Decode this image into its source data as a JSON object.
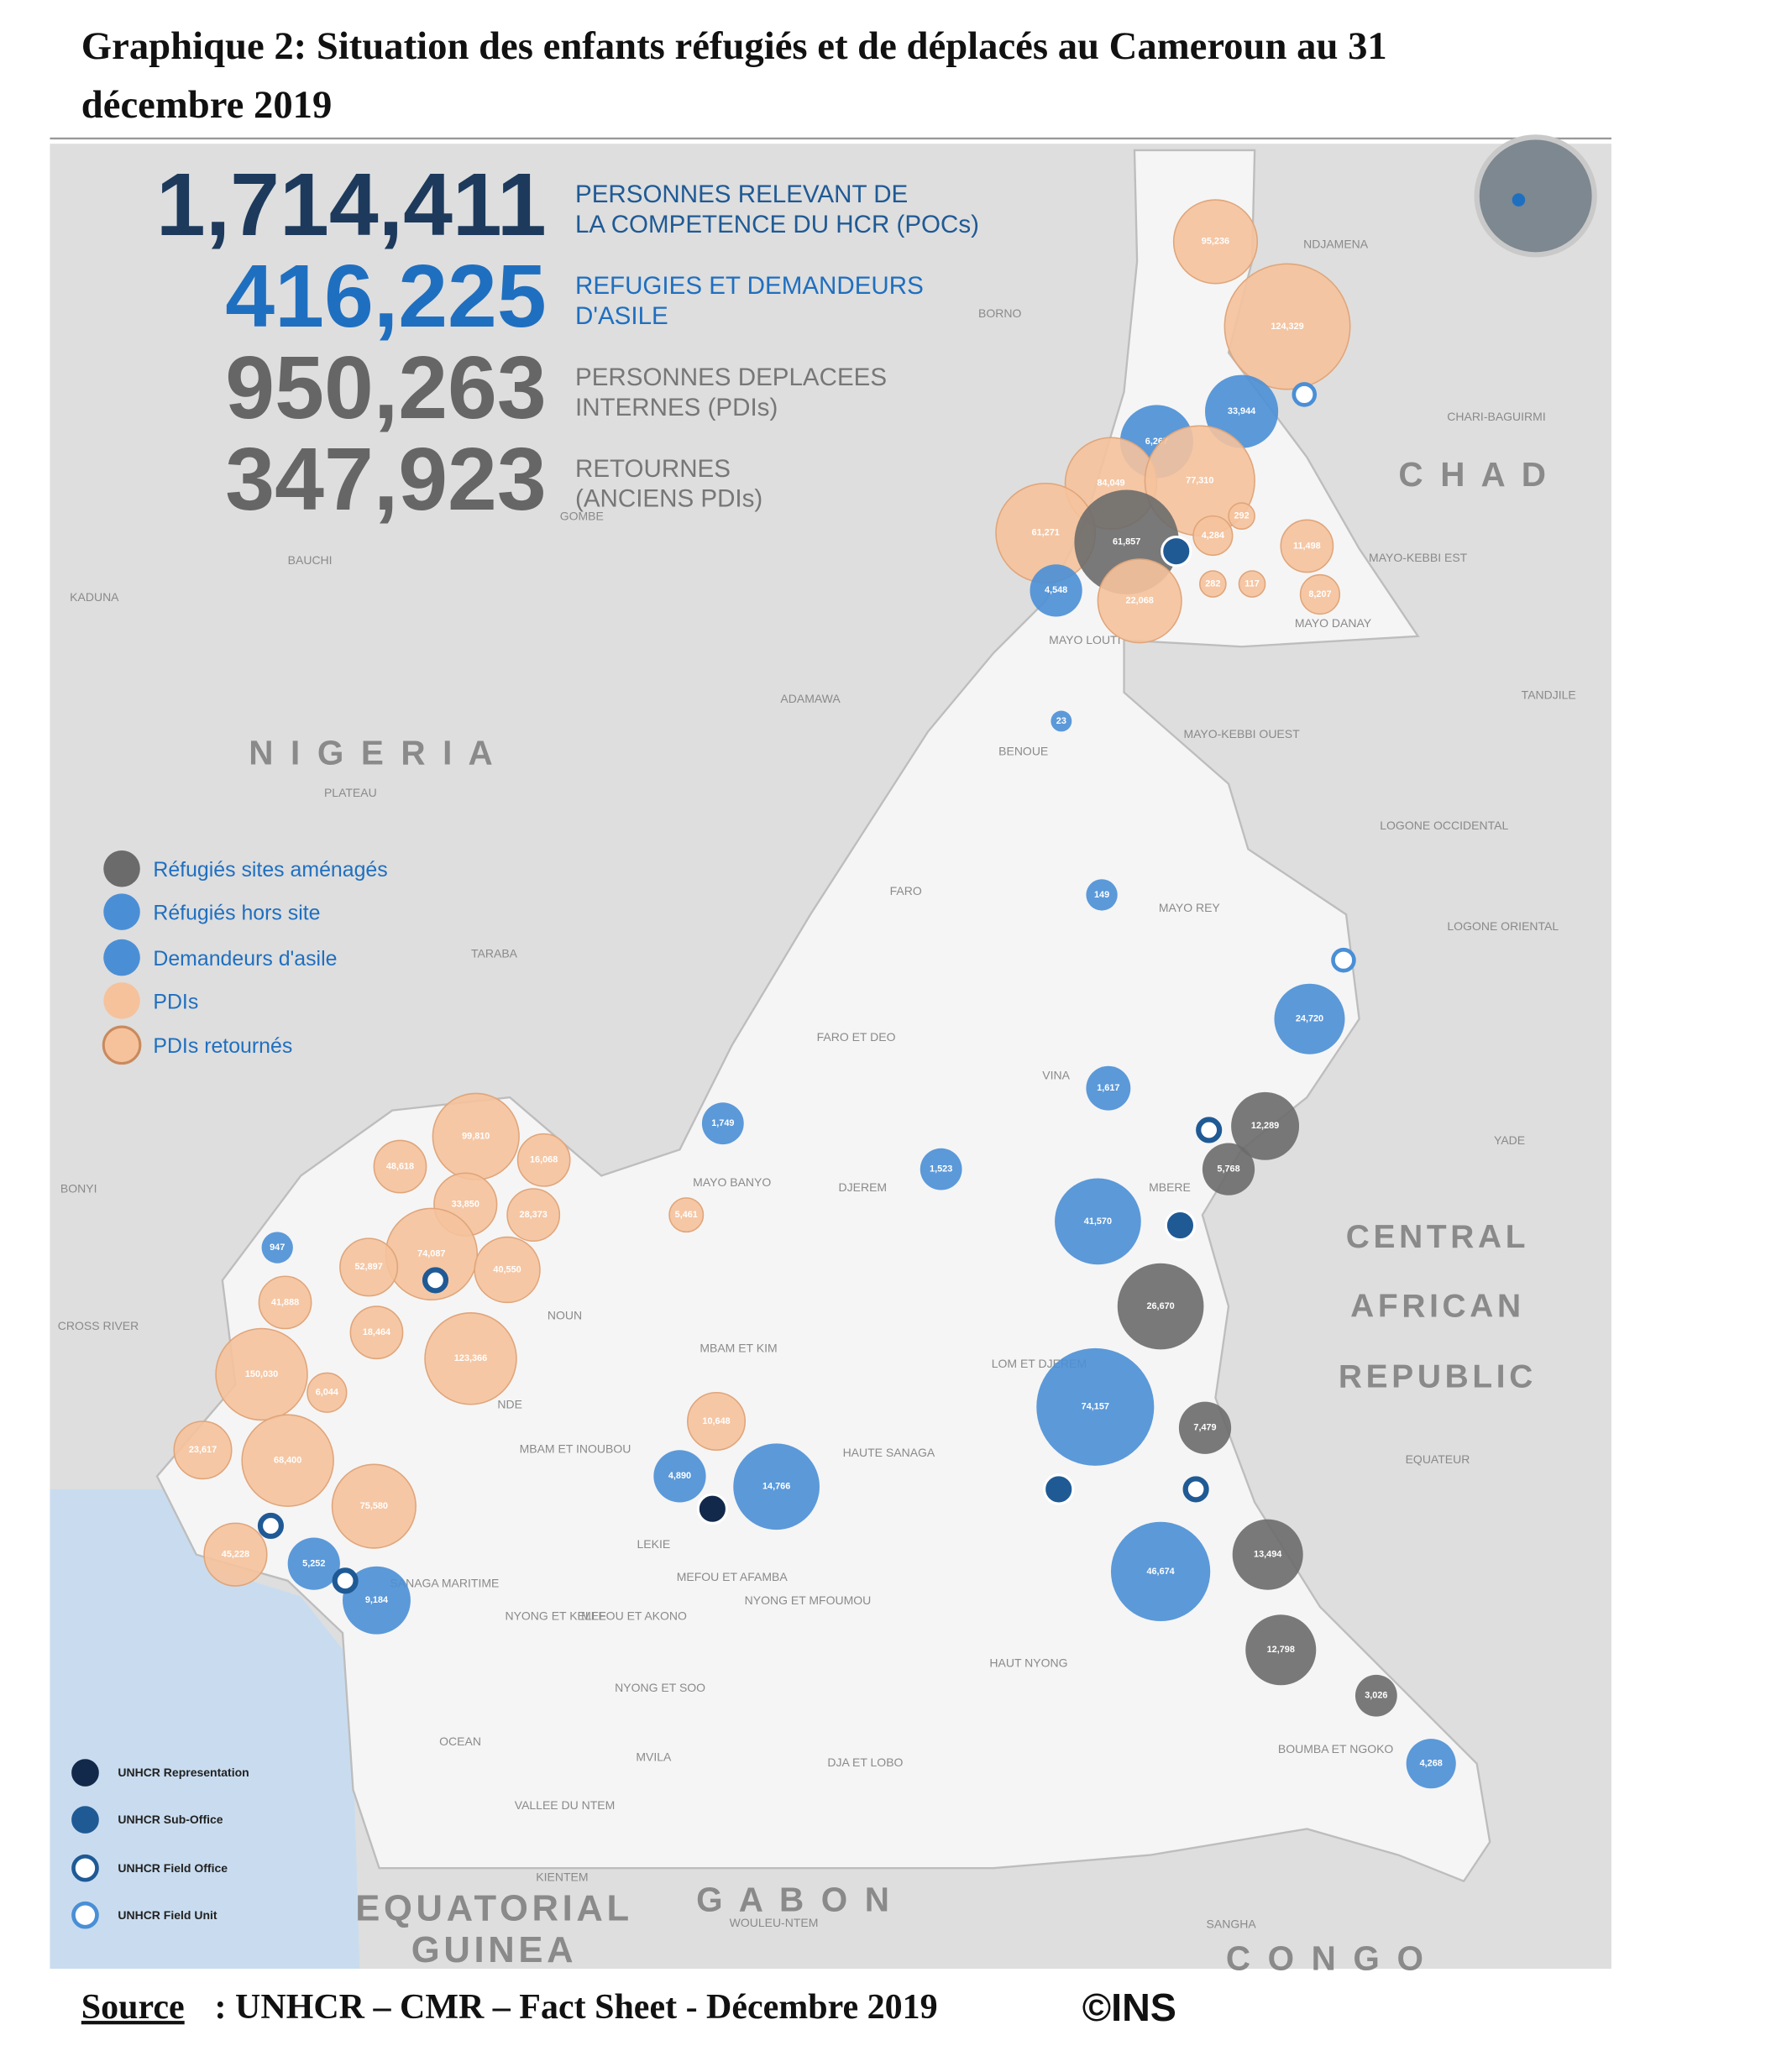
{
  "header": {
    "title_lines": [
      "Graphique 2: Situation des enfants réfugiés et de déplacés au Cameroun au 31",
      "décembre 2019"
    ]
  },
  "stats": [
    {
      "number": "1,714,411",
      "label_lines": [
        "PERSONNES RELEVANT DE",
        "LA COMPETENCE DU HCR (POCs)"
      ]
    },
    {
      "number": "416,225",
      "label_lines": [
        "REFUGIES ET DEMANDEURS",
        "D'ASILE"
      ]
    },
    {
      "number": "950,263",
      "label_lines": [
        "PERSONNES DEPLACEES",
        "INTERNES (PDIs)"
      ]
    },
    {
      "number": "347,923",
      "label_lines": [
        "RETOURNES",
        "(ANCIENS PDIs)"
      ]
    }
  ],
  "legend": [
    "Réfugiés sites aménagés",
    "Réfugiés hors site",
    "Demandeurs d'asile",
    "PDIs",
    "PDIs retournés"
  ],
  "offices": [
    "UNHCR Representation",
    "UNHCR Sub-Office",
    "UNHCR Field Office",
    "UNHCR Field Unit"
  ],
  "countries": [
    {
      "lines": [
        "N I G E R I A"
      ]
    },
    {
      "lines": [
        "C H A D"
      ]
    },
    {
      "lines": [
        "CENTRAL",
        "AFRICAN",
        "REPUBLIC"
      ]
    },
    {
      "lines": [
        "EQUATORIAL",
        "GUINEA"
      ]
    },
    {
      "lines": [
        "G A B O N"
      ]
    },
    {
      "lines": [
        "C O N G O"
      ]
    }
  ],
  "places": [
    "NDJAMENA",
    "BORNO",
    "CHARI-BAGUIRMI",
    "MAYO-KEBBI EST",
    "MAYO DANAY",
    "MAYO LOUTI",
    "GOMBE",
    "BAUCHI",
    "KADUNA",
    "ADAMAWA",
    "PLATEAU",
    "BENOUE",
    "MAYO-KEBBI OUEST",
    "TANDJILE",
    "LOGONE OCCIDENTAL",
    "LOGONE ORIENTAL",
    "FARO",
    "MAYO REY",
    "TARABA",
    "FARO ET DEO",
    "VINA",
    "YADE",
    "MAYO BANYO",
    "DJEREM",
    "MBERE",
    "BONYI",
    "CROSS RIVER",
    "NOUN",
    "MBAM ET KIM",
    "LOM ET DJEREM",
    "NDE",
    "EQUATEUR",
    "MBAM ET INOUBOU",
    "HAUTE SANAGA",
    "LEKIE",
    "MEFOU ET AFAMBA",
    "NYONG ET MFOUMOU",
    "SANAGA MARITIME",
    "NYONG ET KELLE",
    "MEFOU ET AKONO",
    "HAUT NYONG",
    "NYONG ET SOO",
    "OCEAN",
    "MVILA",
    "DJA ET LOBO",
    "BOUMBA ET NGOKO",
    "VALLEE DU NTEM",
    "KIENTEM",
    "WOULEU-NTEM",
    "SANGHA"
  ],
  "bubbles": [
    "95,236",
    "124,329",
    "33,944",
    "6,267",
    "84,049",
    "77,310",
    "61,271",
    "61,857",
    "4,284",
    "292",
    "11,498",
    "4,548",
    "22,068",
    "282",
    "117",
    "8,207",
    "23",
    "149",
    "24,720",
    "1,617",
    "12,289",
    "5,768",
    "41,570",
    "26,670",
    "74,157",
    "7,479",
    "46,674",
    "13,494",
    "12,798",
    "3,026",
    "4,268",
    "1,749",
    "1,523",
    "5,461",
    "10,648",
    "4,890",
    "14,766",
    "99,810",
    "16,068",
    "48,618",
    "33,850",
    "28,373",
    "947",
    "74,087",
    "52,897",
    "40,550",
    "41,888",
    "18,464",
    "123,366",
    "150,030",
    "6,044",
    "23,617",
    "68,400",
    "75,580",
    "45,228",
    "5,252",
    "9,184"
  ],
  "footer": {
    "source": "Source",
    "text": ": UNHCR – CMR – Fact Sheet - Décembre 2019",
    "credit": "©INS"
  }
}
